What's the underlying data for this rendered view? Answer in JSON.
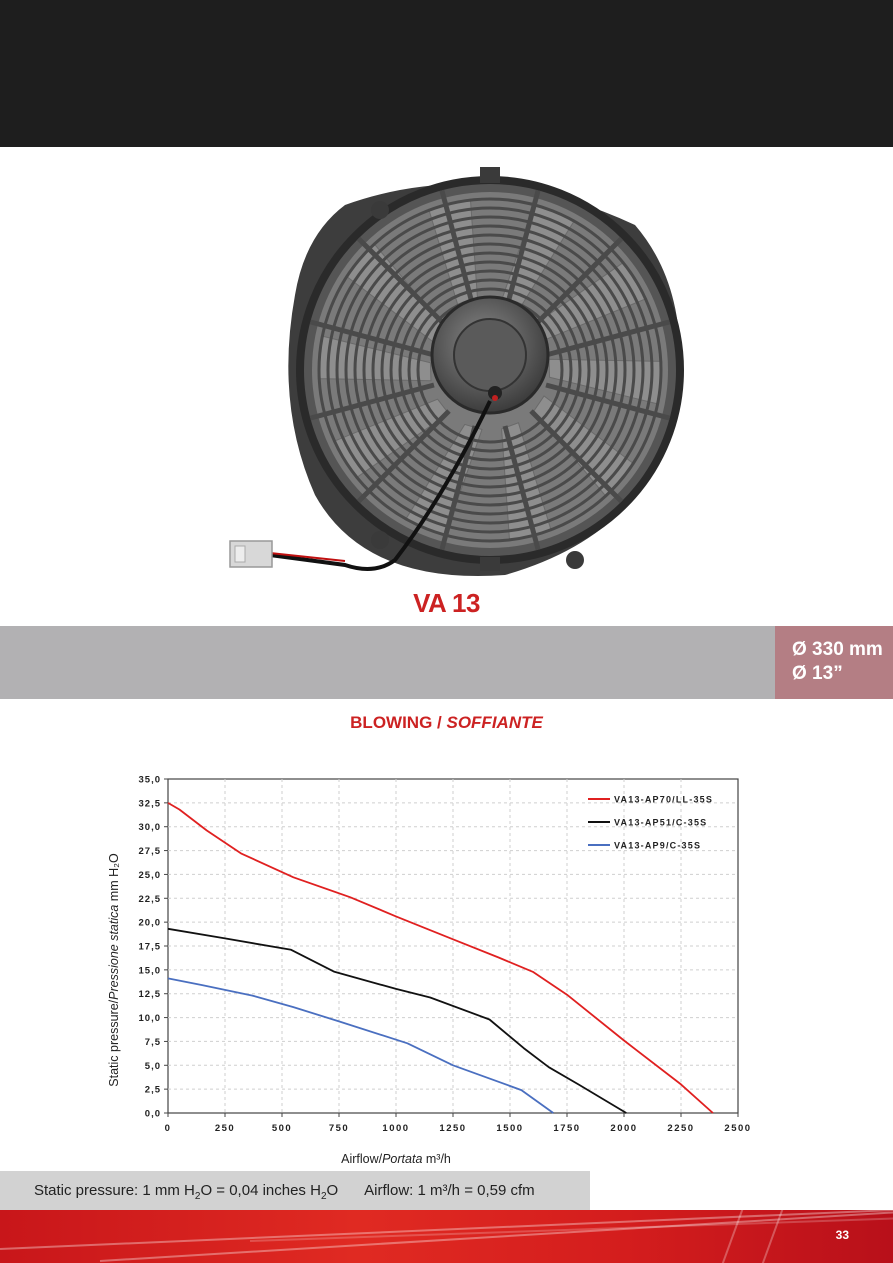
{
  "product": {
    "model": "VA 13",
    "diameter_mm": "Ø 330 mm",
    "diameter_in": "Ø 13”"
  },
  "section": {
    "title_en": "BLOWING / ",
    "title_it": "SOFFIANTE"
  },
  "chart_data": {
    "type": "line",
    "x_axis": {
      "label_en": "Airflow/",
      "label_it": "Portata",
      "unit": "m³/h",
      "range": [
        0,
        2500
      ],
      "ticks": [
        "0",
        "250",
        "500",
        "750",
        "1000",
        "1250",
        "1500",
        "1750",
        "2000",
        "2250",
        "2500"
      ]
    },
    "y_axis": {
      "label_en": "Static pressure/",
      "label_it": "Pressione statica",
      "unit": "mm H₂O",
      "range": [
        0,
        35
      ],
      "ticks": [
        "0,0",
        "2,5",
        "5,0",
        "7,5",
        "10,0",
        "12,5",
        "15,0",
        "17,5",
        "20,0",
        "22,5",
        "25,0",
        "27,5",
        "30,0",
        "32,5",
        "35,0"
      ]
    },
    "grid": true,
    "legend_position": "top-right",
    "series": [
      {
        "name": "VA13-AP70/LL-35S",
        "color": "#e02020",
        "points": [
          [
            0,
            32.5
          ],
          [
            50,
            31.8
          ],
          [
            170,
            29.6
          ],
          [
            320,
            27.2
          ],
          [
            550,
            24.7
          ],
          [
            800,
            22.6
          ],
          [
            1000,
            20.6
          ],
          [
            1250,
            18.2
          ],
          [
            1450,
            16.3
          ],
          [
            1600,
            14.8
          ],
          [
            1750,
            12.4
          ],
          [
            2000,
            7.6
          ],
          [
            2250,
            3.0
          ],
          [
            2390,
            0
          ]
        ]
      },
      {
        "name": "VA13-AP51/C-35S",
        "color": "#111111",
        "points": [
          [
            0,
            19.3
          ],
          [
            250,
            18.3
          ],
          [
            540,
            17.1
          ],
          [
            730,
            14.8
          ],
          [
            1000,
            13.0
          ],
          [
            1150,
            12.1
          ],
          [
            1410,
            9.8
          ],
          [
            1560,
            6.8
          ],
          [
            1670,
            4.8
          ],
          [
            1800,
            3.0
          ],
          [
            2010,
            0
          ]
        ]
      },
      {
        "name": "VA13-AP9/C-35S",
        "color": "#4a6fc0",
        "points": [
          [
            0,
            14.1
          ],
          [
            150,
            13.4
          ],
          [
            370,
            12.3
          ],
          [
            550,
            11.1
          ],
          [
            750,
            9.6
          ],
          [
            1050,
            7.3
          ],
          [
            1250,
            5.0
          ],
          [
            1400,
            3.7
          ],
          [
            1550,
            2.4
          ],
          [
            1690,
            0
          ]
        ]
      }
    ]
  },
  "conversions": {
    "pressure_prefix": "Static pressure: 1 mm H",
    "pressure_mid": "O = 0,04 inches H",
    "pressure_suffix": "O",
    "sub2": "2",
    "airflow": "Airflow: 1 m³/h = 0,59 cfm"
  },
  "page_number": "33"
}
